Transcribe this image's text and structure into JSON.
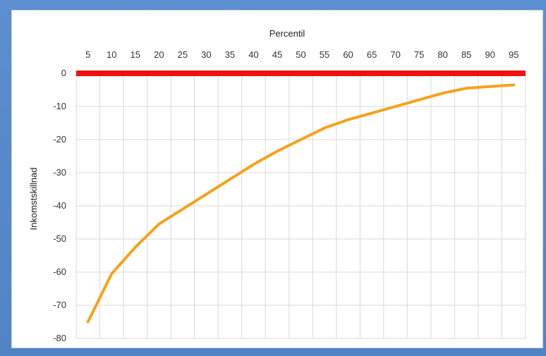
{
  "chart_data": {
    "type": "line",
    "title": "",
    "xlabel": "Percentil",
    "ylabel": "Inkomstskillnad",
    "x": [
      5,
      10,
      15,
      20,
      25,
      30,
      35,
      40,
      45,
      50,
      55,
      60,
      65,
      70,
      75,
      80,
      85,
      90,
      95
    ],
    "xlim": [
      2.5,
      97.5
    ],
    "ylim": [
      -80,
      0
    ],
    "yticks": [
      0,
      -10,
      -20,
      -30,
      -40,
      -50,
      -60,
      -70,
      -80
    ],
    "grid": true,
    "legend": "none",
    "series": [
      {
        "color": "#f5a21b",
        "values": [
          -75,
          -60.5,
          -52.5,
          -45.5,
          -41,
          -36.5,
          -32,
          -27.5,
          -23.5,
          -20,
          -16.5,
          -14,
          -12,
          -10,
          -8,
          -6,
          -4.5,
          -4,
          -3.5
        ]
      },
      {
        "color": "#ee1111",
        "values": [
          0,
          0,
          0,
          0,
          0,
          0,
          0,
          0,
          0,
          0,
          0,
          0,
          0,
          0,
          0,
          0,
          0,
          0,
          0
        ]
      }
    ]
  }
}
